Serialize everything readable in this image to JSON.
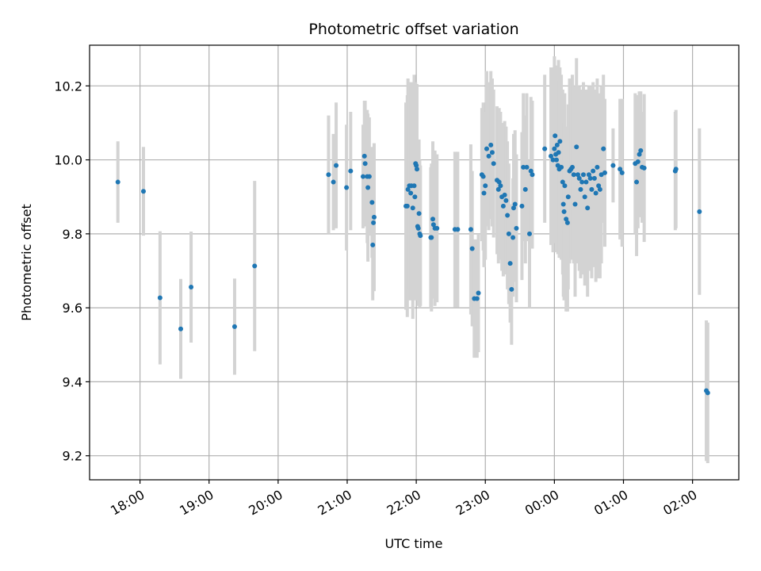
{
  "chart_data": {
    "type": "scatter",
    "title": "Photometric offset variation",
    "xlabel": "UTC time",
    "ylabel": "Photometric offset",
    "x_units": "hours since 18:00 UTC",
    "xlim": [
      -0.73,
      8.67
    ],
    "ylim": [
      9.135,
      10.31
    ],
    "xticks": [
      {
        "x": 0,
        "label": "18:00"
      },
      {
        "x": 1,
        "label": "19:00"
      },
      {
        "x": 2,
        "label": "20:00"
      },
      {
        "x": 3,
        "label": "21:00"
      },
      {
        "x": 4,
        "label": "22:00"
      },
      {
        "x": 5,
        "label": "23:00"
      },
      {
        "x": 6,
        "label": "00:00"
      },
      {
        "x": 7,
        "label": "01:00"
      },
      {
        "x": 8,
        "label": "02:00"
      }
    ],
    "yticks": [
      9.2,
      9.4,
      9.6,
      9.8,
      10.0,
      10.2
    ],
    "ytick_labels": [
      "9.2",
      "9.4",
      "9.6",
      "9.8",
      "10.0",
      "10.2"
    ],
    "grid": true,
    "colors": {
      "points": "#1f77b4",
      "errorbars": "#d3d3d3"
    },
    "points": [
      [
        -0.32,
        9.94,
        0.11
      ],
      [
        0.05,
        9.915,
        0.12
      ],
      [
        0.29,
        9.627,
        0.18
      ],
      [
        0.59,
        9.543,
        0.135
      ],
      [
        0.74,
        9.656,
        0.15
      ],
      [
        1.37,
        9.549,
        0.13
      ],
      [
        1.66,
        9.713,
        0.23
      ],
      [
        2.73,
        9.96,
        0.16
      ],
      [
        2.8,
        9.94,
        0.13
      ],
      [
        2.84,
        9.985,
        0.17
      ],
      [
        2.99,
        9.925,
        0.17
      ],
      [
        3.05,
        9.97,
        0.16
      ],
      [
        3.23,
        9.955,
        0.14
      ],
      [
        3.25,
        10.01,
        0.15
      ],
      [
        3.26,
        9.99,
        0.17
      ],
      [
        3.29,
        9.955,
        0.18
      ],
      [
        3.3,
        9.925,
        0.2
      ],
      [
        3.32,
        9.955,
        0.16
      ],
      [
        3.36,
        9.885,
        0.15
      ],
      [
        3.37,
        9.77,
        0.15
      ],
      [
        3.38,
        9.83,
        0.16
      ],
      [
        3.39,
        9.845,
        0.2
      ],
      [
        3.85,
        9.875,
        0.28
      ],
      [
        3.87,
        9.875,
        0.3
      ],
      [
        3.88,
        9.92,
        0.3
      ],
      [
        3.9,
        9.93,
        0.28
      ],
      [
        3.92,
        9.91,
        0.29
      ],
      [
        3.93,
        9.93,
        0.28
      ],
      [
        3.95,
        9.87,
        0.3
      ],
      [
        3.97,
        9.93,
        0.3
      ],
      [
        3.98,
        9.9,
        0.28
      ],
      [
        3.99,
        9.99,
        0.22
      ],
      [
        4.0,
        9.985,
        0.22
      ],
      [
        4.01,
        9.975,
        0.23
      ],
      [
        4.02,
        9.82,
        0.2
      ],
      [
        4.03,
        9.815,
        0.21
      ],
      [
        4.04,
        9.855,
        0.2
      ],
      [
        4.05,
        9.8,
        0.2
      ],
      [
        4.06,
        9.795,
        0.19
      ],
      [
        4.21,
        9.79,
        0.19
      ],
      [
        4.22,
        9.79,
        0.2
      ],
      [
        4.24,
        9.84,
        0.21
      ],
      [
        4.25,
        9.825,
        0.2
      ],
      [
        4.27,
        9.815,
        0.21
      ],
      [
        4.3,
        9.815,
        0.2
      ],
      [
        4.56,
        9.812,
        0.21
      ],
      [
        4.6,
        9.812,
        0.21
      ],
      [
        4.79,
        9.812,
        0.23
      ],
      [
        4.81,
        9.76,
        0.21
      ],
      [
        4.84,
        9.625,
        0.16
      ],
      [
        4.88,
        9.625,
        0.16
      ],
      [
        4.9,
        9.64,
        0.16
      ],
      [
        4.95,
        9.96,
        0.18
      ],
      [
        4.97,
        9.955,
        0.2
      ],
      [
        4.98,
        9.91,
        0.2
      ],
      [
        5.0,
        9.93,
        0.2
      ],
      [
        5.02,
        10.03,
        0.21
      ],
      [
        5.05,
        10.01,
        0.2
      ],
      [
        5.08,
        10.04,
        0.2
      ],
      [
        5.1,
        10.02,
        0.2
      ],
      [
        5.12,
        9.99,
        0.2
      ],
      [
        5.17,
        9.945,
        0.2
      ],
      [
        5.19,
        9.92,
        0.2
      ],
      [
        5.2,
        9.94,
        0.2
      ],
      [
        5.22,
        9.93,
        0.2
      ],
      [
        5.24,
        9.9,
        0.2
      ],
      [
        5.26,
        9.875,
        0.19
      ],
      [
        5.28,
        9.905,
        0.2
      ],
      [
        5.3,
        9.89,
        0.2
      ],
      [
        5.32,
        9.85,
        0.2
      ],
      [
        5.34,
        9.8,
        0.19
      ],
      [
        5.36,
        9.72,
        0.16
      ],
      [
        5.38,
        9.65,
        0.15
      ],
      [
        5.4,
        9.79,
        0.16
      ],
      [
        5.41,
        9.87,
        0.2
      ],
      [
        5.43,
        9.88,
        0.2
      ],
      [
        5.45,
        9.815,
        0.2
      ],
      [
        5.53,
        9.875,
        0.2
      ],
      [
        5.55,
        9.98,
        0.2
      ],
      [
        5.58,
        9.92,
        0.2
      ],
      [
        5.6,
        9.98,
        0.2
      ],
      [
        5.64,
        9.8,
        0.2
      ],
      [
        5.66,
        9.97,
        0.2
      ],
      [
        5.68,
        9.96,
        0.2
      ],
      [
        5.86,
        10.03,
        0.2
      ],
      [
        5.95,
        10.01,
        0.24
      ],
      [
        5.98,
        10.0,
        0.25
      ],
      [
        6.0,
        10.03,
        0.25
      ],
      [
        6.01,
        10.065,
        0.19
      ],
      [
        6.02,
        10.015,
        0.24
      ],
      [
        6.03,
        10.0,
        0.25
      ],
      [
        6.04,
        10.04,
        0.2
      ],
      [
        6.05,
        9.985,
        0.24
      ],
      [
        6.06,
        10.02,
        0.25
      ],
      [
        6.07,
        9.975,
        0.24
      ],
      [
        6.08,
        10.05,
        0.2
      ],
      [
        6.1,
        9.98,
        0.25
      ],
      [
        6.12,
        9.94,
        0.25
      ],
      [
        6.13,
        9.88,
        0.25
      ],
      [
        6.14,
        9.86,
        0.24
      ],
      [
        6.15,
        9.93,
        0.25
      ],
      [
        6.17,
        9.84,
        0.25
      ],
      [
        6.19,
        9.83,
        0.24
      ],
      [
        6.2,
        9.9,
        0.25
      ],
      [
        6.22,
        9.97,
        0.25
      ],
      [
        6.24,
        9.975,
        0.24
      ],
      [
        6.26,
        9.98,
        0.25
      ],
      [
        6.28,
        9.96,
        0.24
      ],
      [
        6.3,
        9.88,
        0.25
      ],
      [
        6.32,
        10.035,
        0.24
      ],
      [
        6.34,
        9.96,
        0.24
      ],
      [
        6.36,
        9.95,
        0.25
      ],
      [
        6.38,
        9.92,
        0.24
      ],
      [
        6.4,
        9.94,
        0.25
      ],
      [
        6.42,
        9.96,
        0.25
      ],
      [
        6.44,
        9.9,
        0.24
      ],
      [
        6.46,
        9.94,
        0.25
      ],
      [
        6.48,
        9.87,
        0.24
      ],
      [
        6.5,
        9.96,
        0.24
      ],
      [
        6.52,
        9.95,
        0.25
      ],
      [
        6.54,
        9.92,
        0.24
      ],
      [
        6.56,
        9.97,
        0.24
      ],
      [
        6.58,
        9.95,
        0.24
      ],
      [
        6.6,
        9.91,
        0.24
      ],
      [
        6.62,
        9.98,
        0.24
      ],
      [
        6.64,
        9.93,
        0.25
      ],
      [
        6.66,
        9.92,
        0.24
      ],
      [
        6.68,
        9.96,
        0.24
      ],
      [
        6.71,
        10.03,
        0.2
      ],
      [
        6.73,
        9.965,
        0.2
      ],
      [
        6.85,
        9.985,
        0.1
      ],
      [
        6.95,
        9.975,
        0.19
      ],
      [
        6.98,
        9.965,
        0.2
      ],
      [
        7.17,
        9.99,
        0.19
      ],
      [
        7.19,
        9.94,
        0.2
      ],
      [
        7.21,
        9.995,
        0.18
      ],
      [
        7.23,
        10.015,
        0.17
      ],
      [
        7.25,
        10.025,
        0.16
      ],
      [
        7.27,
        9.98,
        0.15
      ],
      [
        7.3,
        9.978,
        0.2
      ],
      [
        7.75,
        9.97,
        0.16
      ],
      [
        7.76,
        9.975,
        0.16
      ],
      [
        8.1,
        9.86,
        0.225
      ],
      [
        8.2,
        9.376,
        0.19
      ],
      [
        8.22,
        9.37,
        0.19
      ]
    ]
  }
}
